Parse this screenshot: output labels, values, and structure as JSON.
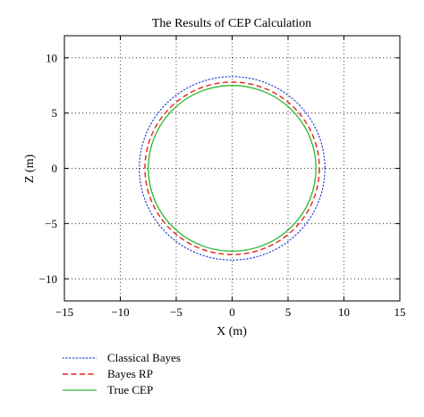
{
  "chart_data": {
    "type": "line",
    "title": "The Results of CEP Calculation",
    "xlabel": "X (m)",
    "ylabel": "Z (m)",
    "xlim": [
      -15,
      15
    ],
    "ylim": [
      -12,
      12
    ],
    "xticks": [
      -15,
      -10,
      -5,
      0,
      5,
      10,
      15
    ],
    "yticks": [
      -10,
      -5,
      0,
      5,
      10
    ],
    "grid": true,
    "legend_placement": "below",
    "series": [
      {
        "name": "Classical Bayes",
        "shape": "circle",
        "center": [
          0,
          0
        ],
        "radius": 8.3,
        "color": "#1f3fd6",
        "style": "dotted"
      },
      {
        "name": "Bayes RP",
        "shape": "circle",
        "center": [
          0,
          0
        ],
        "radius": 7.8,
        "color": "#e0241b",
        "style": "dashed"
      },
      {
        "name": "True CEP",
        "shape": "circle",
        "center": [
          0,
          0
        ],
        "radius": 7.5,
        "color": "#2eb82e",
        "style": "solid"
      }
    ]
  }
}
